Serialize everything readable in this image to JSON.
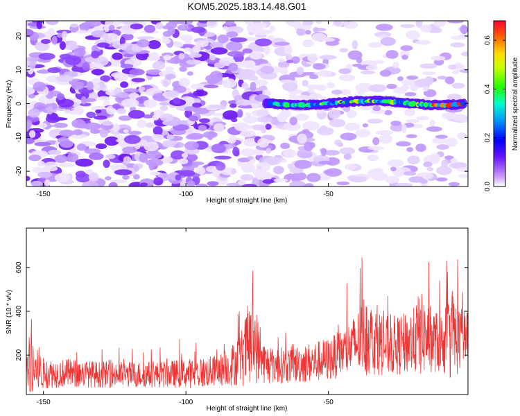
{
  "title": "KOM5.2025.183.14.48.G01",
  "chart_data": [
    {
      "type": "heatmap",
      "xlabel": "Height of straight line (km)",
      "ylabel": "Frequency (Hz)",
      "xlim": [
        -156,
        -1
      ],
      "ylim": [
        -24.5,
        24.5
      ],
      "xticks": [
        -150,
        -100,
        -50
      ],
      "yticks": [
        -20,
        -10,
        0,
        10,
        20
      ],
      "colorbar": {
        "label": "Normalized spectral amplitude",
        "range": [
          0.0,
          0.68
        ],
        "ticks": [
          0.0,
          0.2,
          0.4,
          0.6
        ]
      },
      "signal_band": {
        "x_range": [
          -72,
          -2
        ],
        "frequency_hz": 0
      }
    },
    {
      "type": "line",
      "xlabel": "Height of straight line (km)",
      "ylabel": "SNR (10 * v/v)",
      "xlim": [
        -156,
        -1
      ],
      "ylim": [
        20,
        780
      ],
      "xticks": [
        -150,
        -100,
        -50
      ],
      "yticks": [
        200,
        400,
        600
      ],
      "color": "#ee3333",
      "envelope": {
        "x": [
          -156,
          -154,
          -153,
          -150,
          -145,
          -140,
          -130,
          -120,
          -110,
          -100,
          -95,
          -90,
          -85,
          -80,
          -78,
          -76,
          -74,
          -72,
          -70,
          -65,
          -60,
          -55,
          -50,
          -45,
          -40,
          -37,
          -35,
          -30,
          -25,
          -20,
          -18,
          -15,
          -13,
          -10,
          -8,
          -7,
          -5,
          -3,
          -1
        ],
        "base": [
          110,
          130,
          120,
          110,
          110,
          110,
          105,
          105,
          105,
          110,
          110,
          120,
          135,
          180,
          220,
          250,
          180,
          150,
          145,
          145,
          150,
          160,
          170,
          200,
          240,
          280,
          260,
          230,
          230,
          250,
          280,
          260,
          250,
          240,
          260,
          280,
          260,
          260,
          280
        ],
        "amp": [
          80,
          450,
          200,
          130,
          120,
          120,
          110,
          110,
          110,
          120,
          130,
          130,
          150,
          250,
          380,
          380,
          200,
          170,
          160,
          150,
          160,
          170,
          180,
          200,
          260,
          360,
          300,
          250,
          250,
          280,
          360,
          300,
          260,
          260,
          320,
          420,
          320,
          260,
          200
        ]
      }
    }
  ]
}
